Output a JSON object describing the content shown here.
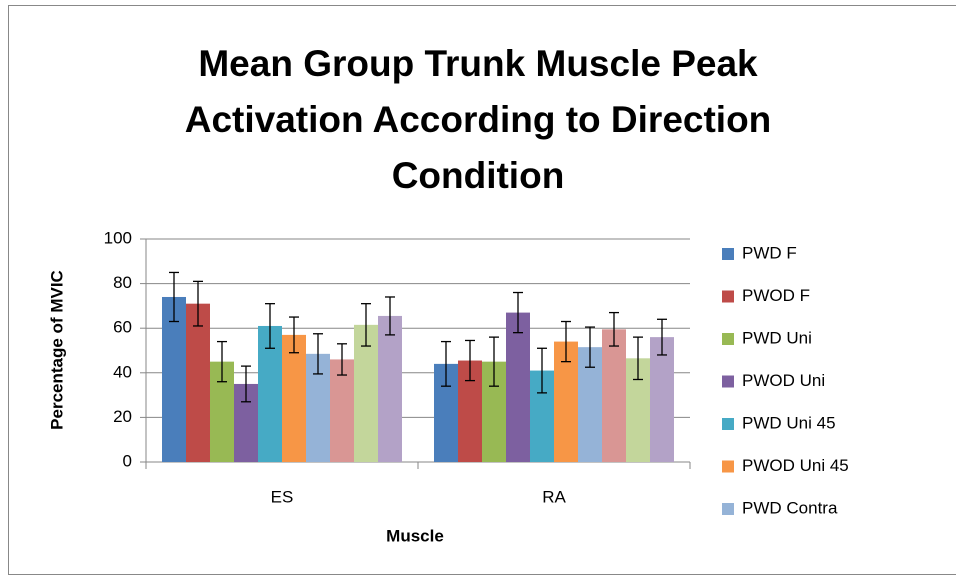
{
  "chart_data": {
    "type": "bar",
    "title": "Mean Group Trunk Muscle Peak Activation According to Direction Condition",
    "x_label": "Muscle",
    "y_label": "Percentage of MVIC",
    "categories": [
      "ES",
      "RA"
    ],
    "ylim": [
      0,
      100
    ],
    "yticks": [
      0,
      20,
      40,
      60,
      80,
      100
    ],
    "grid": true,
    "legend": "right",
    "series": [
      {
        "name": "PWD F",
        "color": "#4a7ebb",
        "values": [
          74,
          44
        ],
        "errors": [
          11,
          10
        ]
      },
      {
        "name": "PWOD F",
        "color": "#be4b48",
        "values": [
          71,
          45.5
        ],
        "errors": [
          10,
          9
        ]
      },
      {
        "name": "PWD Uni",
        "color": "#98b954",
        "values": [
          45,
          45
        ],
        "errors": [
          9,
          11
        ]
      },
      {
        "name": "PWOD Uni",
        "color": "#7d60a0",
        "values": [
          35,
          67
        ],
        "errors": [
          8,
          9
        ]
      },
      {
        "name": "PWD Uni 45",
        "color": "#46aac5",
        "values": [
          61,
          41
        ],
        "errors": [
          10,
          10
        ]
      },
      {
        "name": "PWOD Uni 45",
        "color": "#f79646",
        "values": [
          57,
          54
        ],
        "errors": [
          8,
          9
        ]
      },
      {
        "name": "PWD Contra",
        "color": "#95b3d7",
        "values": [
          48.5,
          51.5
        ],
        "errors": [
          9,
          9
        ]
      },
      {
        "color": "#d99694",
        "values": [
          46,
          59.5
        ],
        "errors": [
          7,
          7.5
        ]
      },
      {
        "color": "#c3d69b",
        "values": [
          61.5,
          46.5
        ],
        "errors": [
          9.5,
          9.5
        ]
      },
      {
        "color": "#b3a2c7",
        "values": [
          65.5,
          56
        ],
        "errors": [
          8.5,
          8
        ]
      }
    ]
  }
}
